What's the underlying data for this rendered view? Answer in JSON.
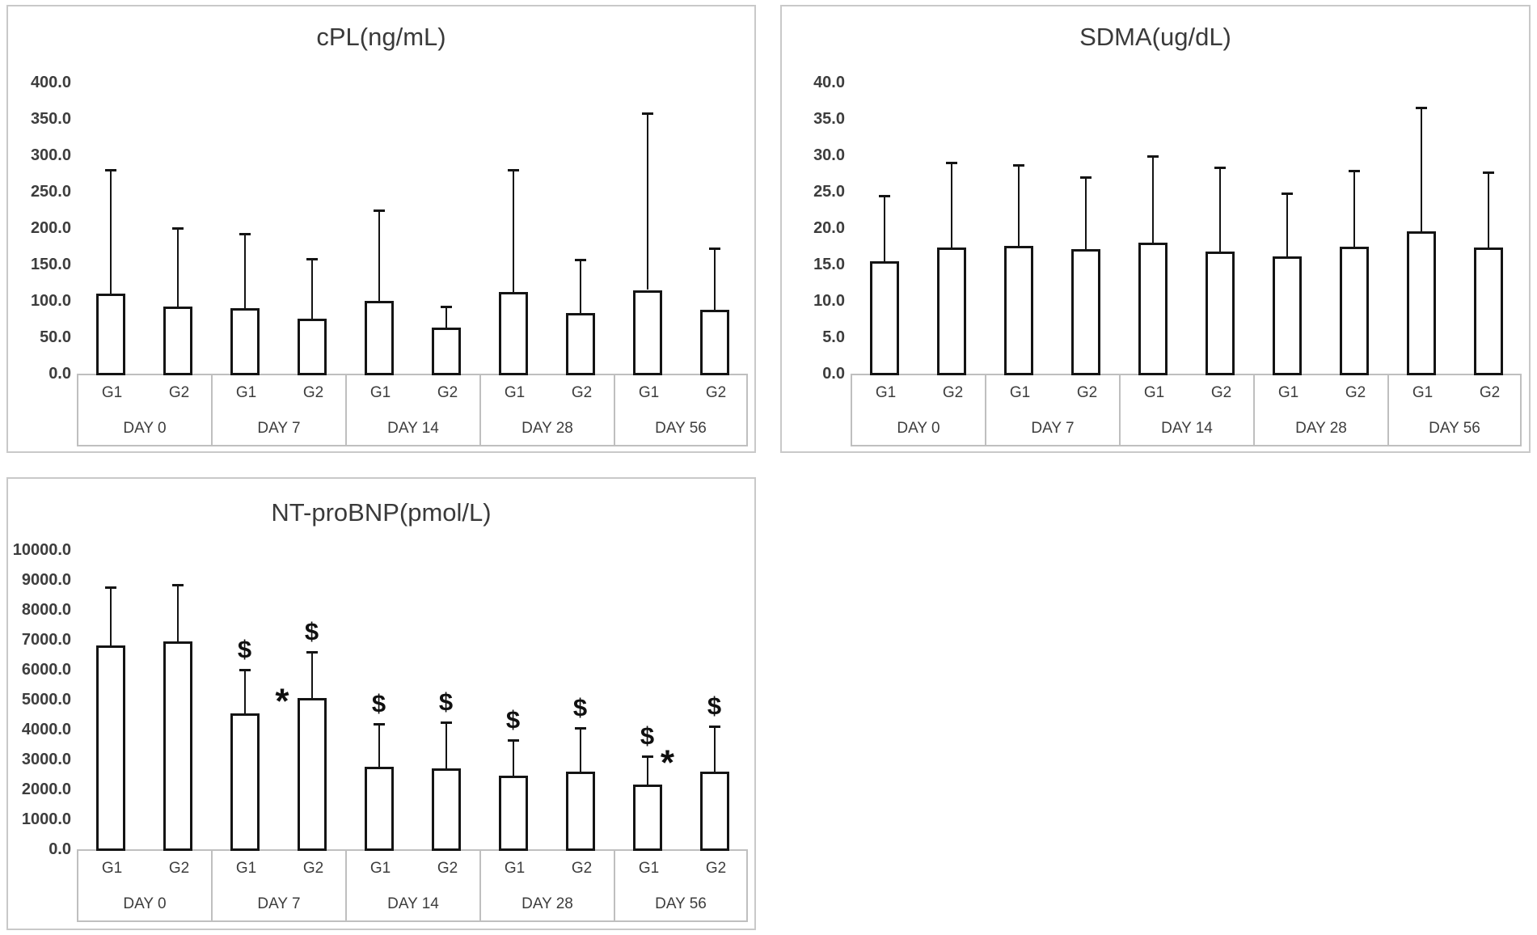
{
  "figure": {
    "background": "#ffffff",
    "bar_fill": "#ffffff",
    "bar_border_color": "#141414",
    "axis_text_color": "#3d3d3d",
    "panel_border_color": "#c9c9c9",
    "group_names": [
      "G1",
      "G2"
    ],
    "day_labels": [
      "DAY 0",
      "DAY 7",
      "DAY 14",
      "DAY 28",
      "DAY 56"
    ]
  },
  "chart_data": [
    {
      "id": "cpl",
      "type": "bar",
      "title": "cPL(ng/mL)",
      "ylabel": "",
      "xlabel": "",
      "y_max": 400,
      "y_step": 50,
      "grid": false,
      "legend": false,
      "error_bars": "upper whisker only",
      "y_ticks": [
        "400.0",
        "350.0",
        "300.0",
        "250.0",
        "200.0",
        "150.0",
        "100.0",
        "50.0",
        "0.0"
      ],
      "groups": [
        {
          "label": "DAY 0",
          "bars": [
            {
              "label": "G1",
              "value": 110,
              "whisker": 280
            },
            {
              "label": "G2",
              "value": 92,
              "whisker": 200
            }
          ]
        },
        {
          "label": "DAY 7",
          "bars": [
            {
              "label": "G1",
              "value": 90,
              "whisker": 192
            },
            {
              "label": "G2",
              "value": 76,
              "whisker": 158
            }
          ]
        },
        {
          "label": "DAY 14",
          "bars": [
            {
              "label": "G1",
              "value": 100,
              "whisker": 225
            },
            {
              "label": "G2",
              "value": 63,
              "whisker": 92
            }
          ]
        },
        {
          "label": "DAY 28",
          "bars": [
            {
              "label": "G1",
              "value": 112,
              "whisker": 280
            },
            {
              "label": "G2",
              "value": 83,
              "whisker": 157
            }
          ]
        },
        {
          "label": "DAY 56",
          "bars": [
            {
              "label": "G1",
              "value": 115,
              "whisker": 358
            },
            {
              "label": "G2",
              "value": 88,
              "whisker": 172
            }
          ]
        }
      ],
      "annotations": []
    },
    {
      "id": "sdma",
      "type": "bar",
      "title": "SDMA(ug/dL)",
      "ylabel": "",
      "xlabel": "",
      "y_max": 40,
      "y_step": 5,
      "grid": false,
      "legend": false,
      "error_bars": "upper whisker only",
      "y_ticks": [
        "40.0",
        "35.0",
        "30.0",
        "25.0",
        "20.0",
        "15.0",
        "10.0",
        "5.0",
        "0.0"
      ],
      "groups": [
        {
          "label": "DAY 0",
          "bars": [
            {
              "label": "G1",
              "value": 15.5,
              "whisker": 24.5
            },
            {
              "label": "G2",
              "value": 17.3,
              "whisker": 29.0
            }
          ]
        },
        {
          "label": "DAY 7",
          "bars": [
            {
              "label": "G1",
              "value": 17.6,
              "whisker": 28.7
            },
            {
              "label": "G2",
              "value": 17.1,
              "whisker": 27.0
            }
          ]
        },
        {
          "label": "DAY 14",
          "bars": [
            {
              "label": "G1",
              "value": 18.0,
              "whisker": 29.9
            },
            {
              "label": "G2",
              "value": 16.8,
              "whisker": 28.3
            }
          ]
        },
        {
          "label": "DAY 28",
          "bars": [
            {
              "label": "G1",
              "value": 16.1,
              "whisker": 24.8
            },
            {
              "label": "G2",
              "value": 17.4,
              "whisker": 27.9
            }
          ]
        },
        {
          "label": "DAY 56",
          "bars": [
            {
              "label": "G1",
              "value": 19.6,
              "whisker": 36.6
            },
            {
              "label": "G2",
              "value": 17.3,
              "whisker": 27.7
            }
          ]
        }
      ],
      "annotations": []
    },
    {
      "id": "ntprobnp",
      "type": "bar",
      "title": "NT-proBNP(pmol/L)",
      "ylabel": "",
      "xlabel": "",
      "y_max": 10000,
      "y_step": 1000,
      "grid": false,
      "legend": false,
      "error_bars": "upper whisker only",
      "y_ticks": [
        "10000.0",
        "9000.0",
        "8000.0",
        "7000.0",
        "6000.0",
        "5000.0",
        "4000.0",
        "3000.0",
        "2000.0",
        "1000.0",
        "0.0"
      ],
      "groups": [
        {
          "label": "DAY 0",
          "bars": [
            {
              "label": "G1",
              "value": 6800,
              "whisker": 8750
            },
            {
              "label": "G2",
              "value": 6950,
              "whisker": 8850
            }
          ]
        },
        {
          "label": "DAY 7",
          "bars": [
            {
              "label": "G1",
              "value": 4550,
              "whisker": 6000,
              "marker": "$"
            },
            {
              "label": "G2",
              "value": 5050,
              "whisker": 6600,
              "marker": "$"
            }
          ]
        },
        {
          "label": "DAY 14",
          "bars": [
            {
              "label": "G1",
              "value": 2750,
              "whisker": 4200,
              "marker": "$"
            },
            {
              "label": "G2",
              "value": 2700,
              "whisker": 4250,
              "marker": "$"
            }
          ]
        },
        {
          "label": "DAY 28",
          "bars": [
            {
              "label": "G1",
              "value": 2450,
              "whisker": 3650,
              "marker": "$"
            },
            {
              "label": "G2",
              "value": 2600,
              "whisker": 4050,
              "marker": "$"
            }
          ]
        },
        {
          "label": "DAY 56",
          "bars": [
            {
              "label": "G1",
              "value": 2150,
              "whisker": 3100,
              "marker": "$"
            },
            {
              "label": "G2",
              "value": 2600,
              "whisker": 4100,
              "marker": "$"
            }
          ]
        }
      ],
      "annotations": [
        {
          "glyph": "*",
          "group_index": 1,
          "x_frac": 0.53,
          "value": 5100
        },
        {
          "glyph": "*",
          "group_index": 4,
          "x_frac": 0.4,
          "value": 3050
        }
      ]
    }
  ]
}
